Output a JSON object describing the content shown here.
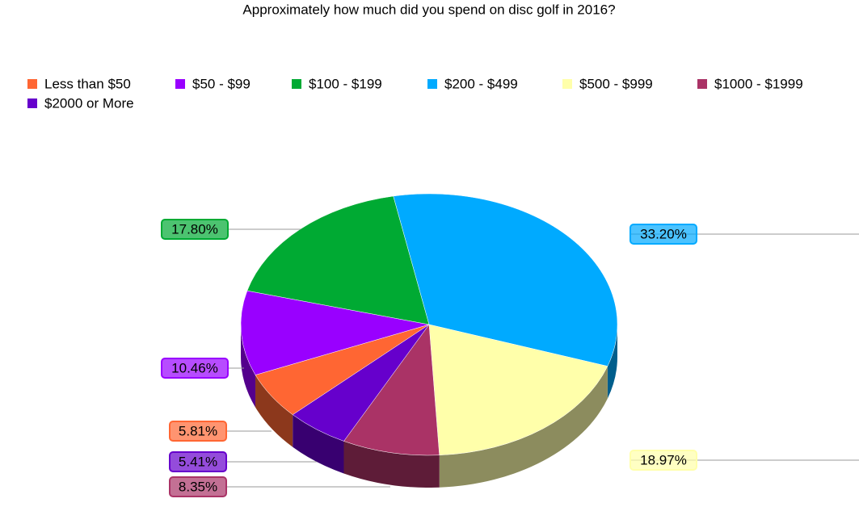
{
  "chart_data": {
    "type": "pie",
    "title": "Approximately how much did you spend on disc golf in 2016?",
    "categories": [
      "Less than $50",
      "$50 - $99",
      "$100 - $199",
      "$200 - $499",
      "$500 - $999",
      "$1000 - $1999",
      "$2000 or More"
    ],
    "values": [
      5.81,
      10.46,
      17.8,
      33.2,
      18.97,
      8.35,
      5.41
    ],
    "value_labels": [
      "5.81%",
      "10.46%",
      "17.80%",
      "33.20%",
      "18.97%",
      "8.35%",
      "5.41%"
    ],
    "colors": [
      "#ff6633",
      "#9900ff",
      "#00aa33",
      "#00aaff",
      "#ffffaa",
      "#aa3366",
      "#6600cc"
    ]
  }
}
